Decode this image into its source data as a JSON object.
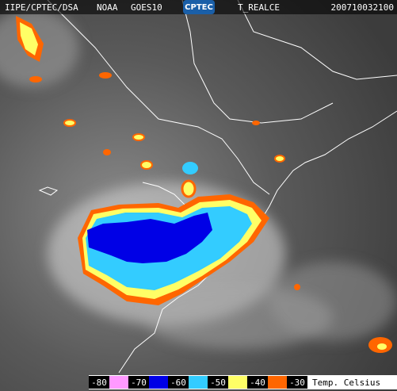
{
  "header": {
    "source": "IIPE/CPTEC/DSA",
    "agency": "NOAA",
    "satellite": "GOES10",
    "logo": "CPTEC",
    "product": "T_REALCE",
    "timestamp": "200710032100"
  },
  "legend": {
    "items": [
      {
        "label": -80,
        "color": "#ff99ff"
      },
      {
        "label": -70,
        "color": "#0000e6"
      },
      {
        "label": -60,
        "color": "#33ccff"
      },
      {
        "label": -50,
        "color": "#ffff66"
      },
      {
        "label": -40,
        "color": "#ff6600"
      },
      {
        "label": -30
      }
    ],
    "unit": "Temp. Celsius"
  }
}
